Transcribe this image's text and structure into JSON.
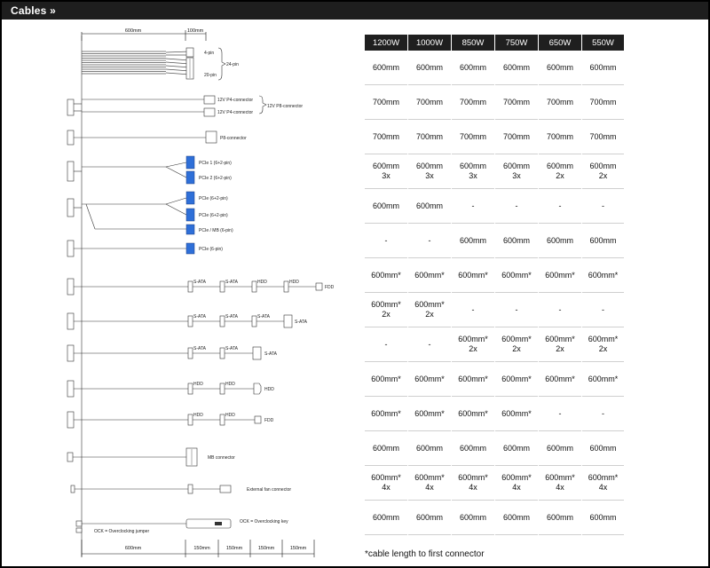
{
  "header": {
    "title": "Cables »"
  },
  "dimensions": {
    "top_main": "600mm",
    "top_ext": "100mm",
    "bottom_main": "600mm",
    "bottom_segments": [
      "150mm",
      "150mm",
      "150mm",
      "150mm"
    ]
  },
  "connector_labels": {
    "pin4": "4-pin",
    "pin20": "20-pin",
    "pin24": "24-pin",
    "p4_a": "12V P4-connector",
    "p4_b": "12V P4-connector",
    "p8": "12V P8-connector",
    "p8_single": "P8-connector",
    "pcie1": "PCIe 1 (6+2-pin)",
    "pcie2": "PCIe 2 (6+2-pin)",
    "pcie3": "PCIe (6+2-pin)",
    "pcie4": "PCIe (6+2-pin)",
    "pcie_mb": "PCIe / MB (6-pin)",
    "pcie6": "PCIe (6-pin)",
    "r7": [
      "S-ATA",
      "S-ATA",
      "HDD",
      "HDD",
      "FDD"
    ],
    "r8": [
      "S-ATA",
      "S-ATA",
      "S-ATA",
      "S-ATA"
    ],
    "r9": [
      "S-ATA",
      "S-ATA",
      "S-ATA"
    ],
    "r10": [
      "HDD",
      "HDD",
      "HDD"
    ],
    "r11": [
      "HDD",
      "HDD",
      "FDD"
    ],
    "mb": "MB connector",
    "fan": "External fan connector",
    "ock": "OCK = Overclocking key",
    "ocj": "OCK = Overclocking jumper"
  },
  "table": {
    "headers": [
      "1200W",
      "1000W",
      "850W",
      "750W",
      "650W",
      "550W"
    ],
    "rows": [
      [
        [
          "600mm"
        ],
        [
          "600mm"
        ],
        [
          "600mm"
        ],
        [
          "600mm"
        ],
        [
          "600mm"
        ],
        [
          "600mm"
        ]
      ],
      [
        [
          "700mm"
        ],
        [
          "700mm"
        ],
        [
          "700mm"
        ],
        [
          "700mm"
        ],
        [
          "700mm"
        ],
        [
          "700mm"
        ]
      ],
      [
        [
          "700mm"
        ],
        [
          "700mm"
        ],
        [
          "700mm"
        ],
        [
          "700mm"
        ],
        [
          "700mm"
        ],
        [
          "700mm"
        ]
      ],
      [
        [
          "600mm",
          "3x"
        ],
        [
          "600mm",
          "3x"
        ],
        [
          "600mm",
          "3x"
        ],
        [
          "600mm",
          "3x"
        ],
        [
          "600mm",
          "2x"
        ],
        [
          "600mm",
          "2x"
        ]
      ],
      [
        [
          "600mm"
        ],
        [
          "600mm"
        ],
        [
          "-"
        ],
        [
          "-"
        ],
        [
          "-"
        ],
        [
          "-"
        ]
      ],
      [
        [
          "-"
        ],
        [
          "-"
        ],
        [
          "600mm"
        ],
        [
          "600mm"
        ],
        [
          "600mm"
        ],
        [
          "600mm"
        ]
      ],
      [
        [
          "600mm*"
        ],
        [
          "600mm*"
        ],
        [
          "600mm*"
        ],
        [
          "600mm*"
        ],
        [
          "600mm*"
        ],
        [
          "600mm*"
        ]
      ],
      [
        [
          "600mm*",
          "2x"
        ],
        [
          "600mm*",
          "2x"
        ],
        [
          "-"
        ],
        [
          "-"
        ],
        [
          "-"
        ],
        [
          "-"
        ]
      ],
      [
        [
          "-"
        ],
        [
          "-"
        ],
        [
          "600mm*",
          "2x"
        ],
        [
          "600mm*",
          "2x"
        ],
        [
          "600mm*",
          "2x"
        ],
        [
          "600mm*",
          "2x"
        ]
      ],
      [
        [
          "600mm*"
        ],
        [
          "600mm*"
        ],
        [
          "600mm*"
        ],
        [
          "600mm*"
        ],
        [
          "600mm*"
        ],
        [
          "600mm*"
        ]
      ],
      [
        [
          "600mm*"
        ],
        [
          "600mm*"
        ],
        [
          "600mm*"
        ],
        [
          "600mm*"
        ],
        [
          "-"
        ],
        [
          "-"
        ]
      ],
      [
        [
          "600mm"
        ],
        [
          "600mm"
        ],
        [
          "600mm"
        ],
        [
          "600mm"
        ],
        [
          "600mm"
        ],
        [
          "600mm"
        ]
      ],
      [
        [
          "600mm*",
          "4x"
        ],
        [
          "600mm*",
          "4x"
        ],
        [
          "600mm*",
          "4x"
        ],
        [
          "600mm*",
          "4x"
        ],
        [
          "600mm*",
          "4x"
        ],
        [
          "600mm*",
          "4x"
        ]
      ],
      [
        [
          "600mm"
        ],
        [
          "600mm"
        ],
        [
          "600mm"
        ],
        [
          "600mm"
        ],
        [
          "600mm"
        ],
        [
          "600mm"
        ]
      ]
    ]
  },
  "footnote": "*cable length to first connector",
  "colors": {
    "header_bg": "#1e1e1e",
    "pcie_blue": "#2e6fd8",
    "grid_line": "#cfcfcf"
  }
}
